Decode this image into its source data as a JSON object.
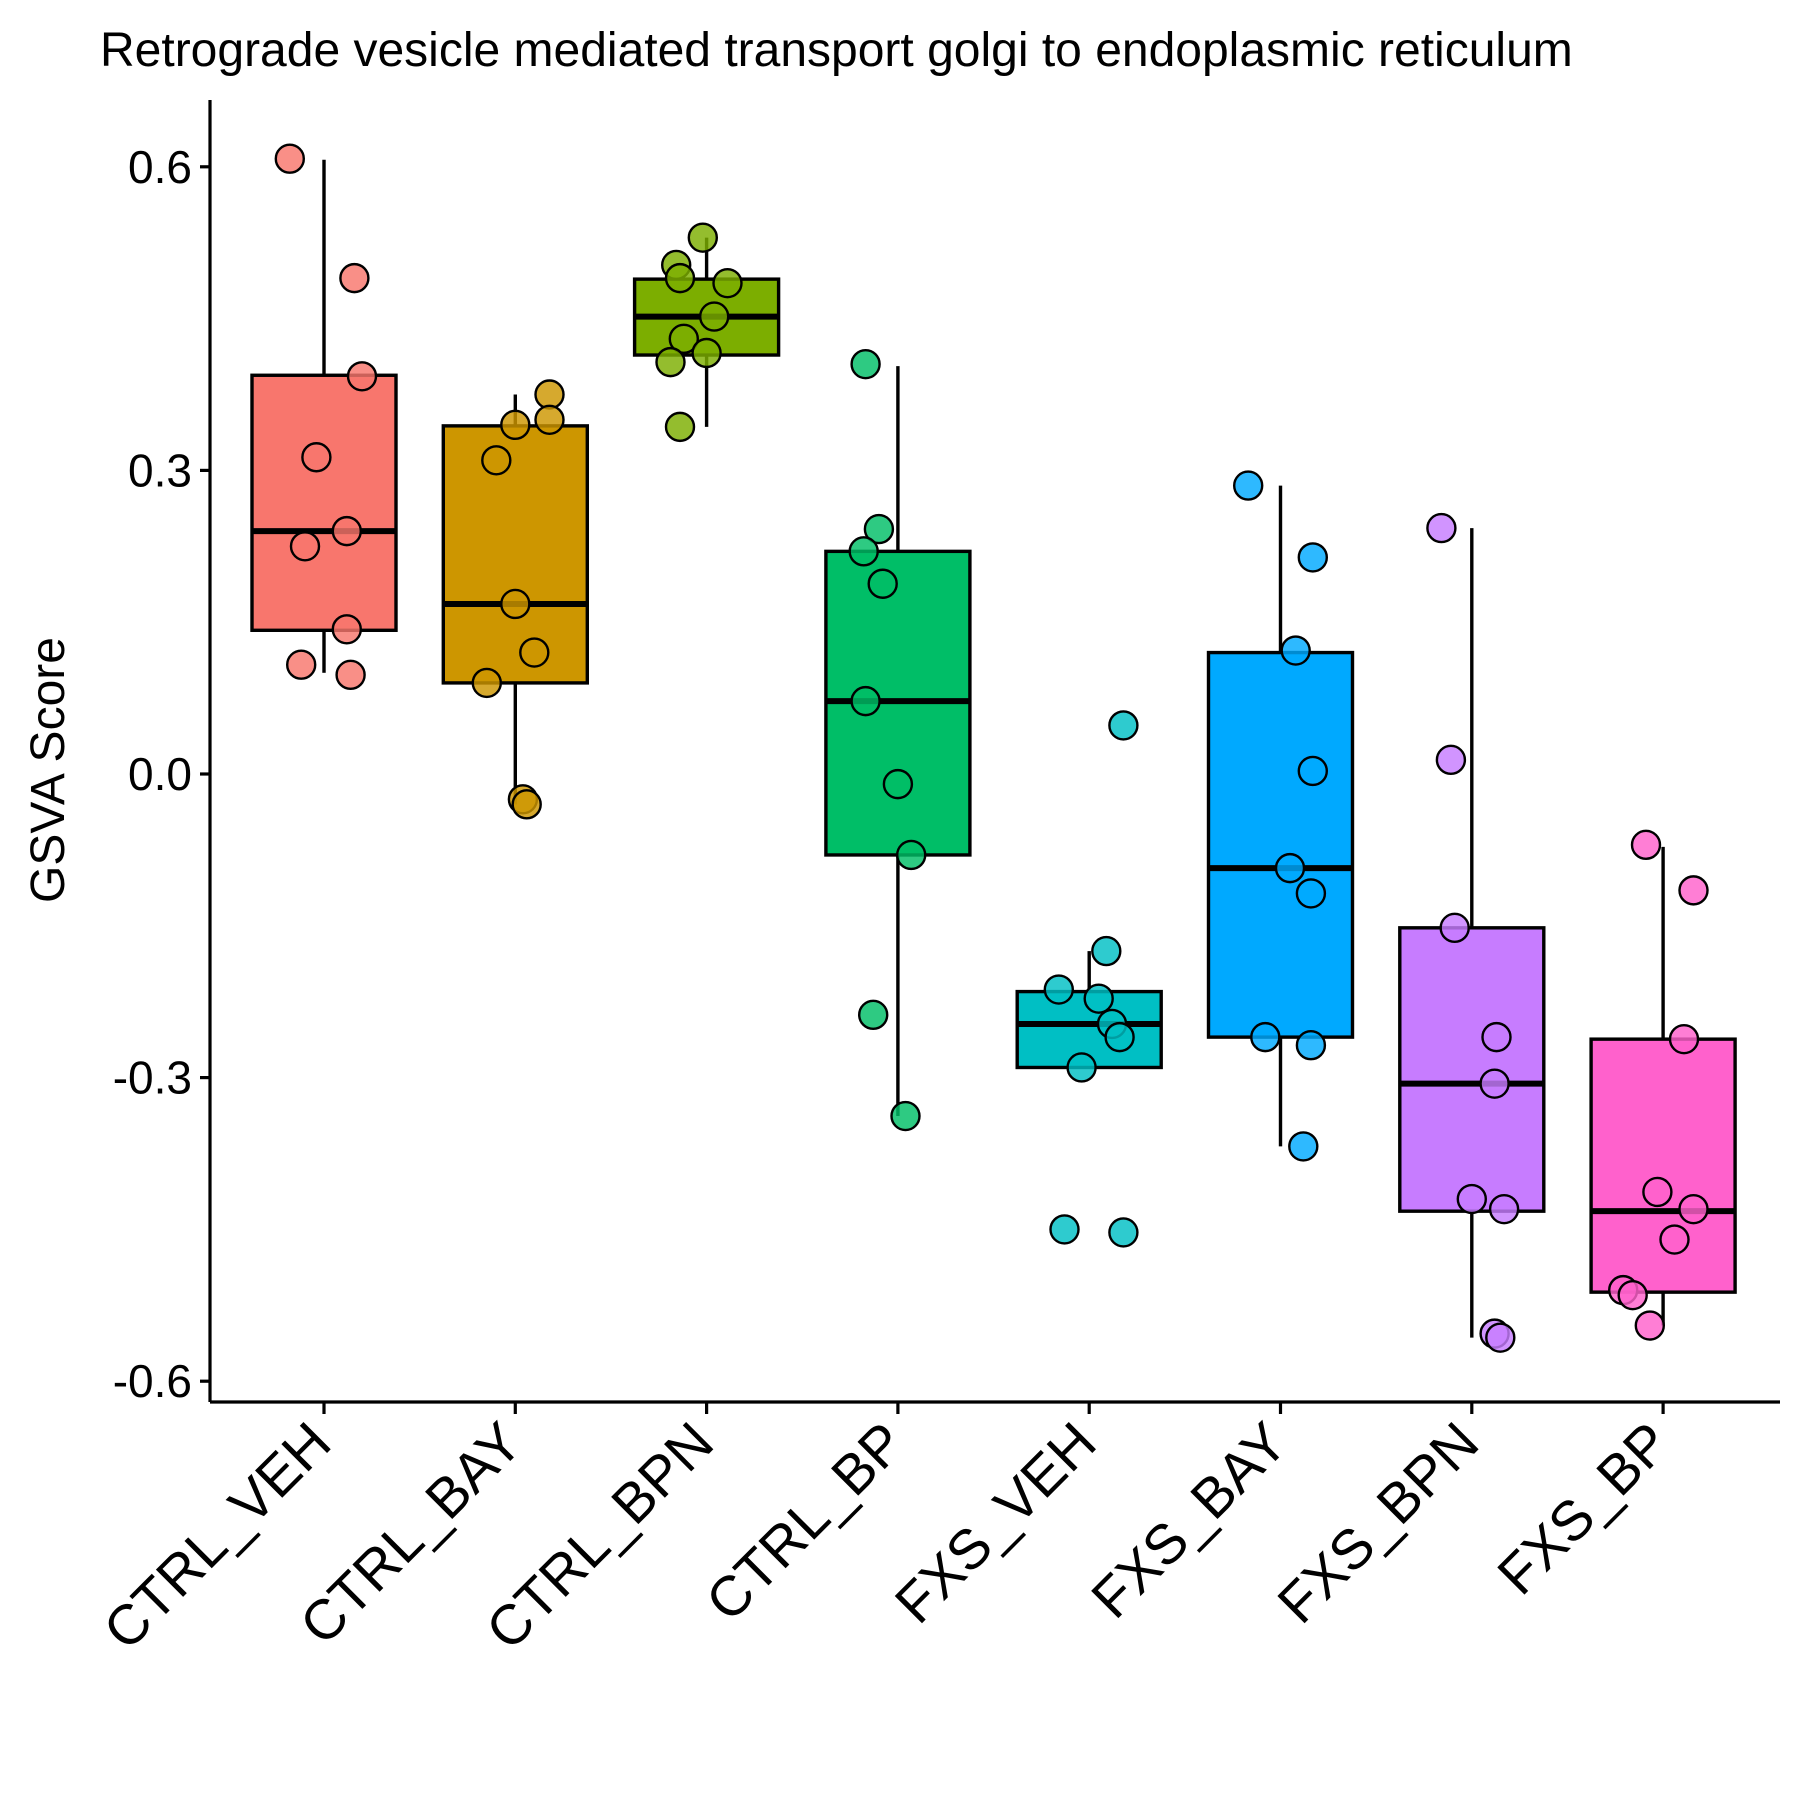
{
  "chart_data": {
    "type": "box",
    "title": "Retrograde vesicle mediated transport golgi to endoplasmic reticulum",
    "xlabel": "",
    "ylabel": "GSVA Score",
    "ylim": [
      -0.62,
      0.645
    ],
    "yticks": [
      0.6,
      0.3,
      0.0,
      -0.3,
      -0.6
    ],
    "ytick_labels": [
      "0.6",
      "0.3",
      "0.0",
      "-0.3",
      "-0.6"
    ],
    "grid": false,
    "legend": "none",
    "categories": [
      "CTRL_VEH",
      "CTRL_BAY",
      "CTRL_BPN",
      "CTRL_BP",
      "FXS_VEH",
      "FXS_BAY",
      "FXS_BPN",
      "FXS_BP"
    ],
    "colors": [
      "#F8766D",
      "#CD9600",
      "#7CAE00",
      "#00BE67",
      "#00BFC4",
      "#00A9FF",
      "#C77CFF",
      "#FF61CC"
    ],
    "boxes": [
      {
        "name": "CTRL_VEH",
        "whisker_low": 0.1,
        "q1": 0.142,
        "median": 0.24,
        "q3": 0.394,
        "whisker_high": 0.607
      },
      {
        "name": "CTRL_BAY",
        "whisker_low": -0.03,
        "q1": 0.09,
        "median": 0.168,
        "q3": 0.344,
        "whisker_high": 0.375
      },
      {
        "name": "CTRL_BPN",
        "whisker_low": 0.343,
        "q1": 0.414,
        "median": 0.452,
        "q3": 0.489,
        "whisker_high": 0.53
      },
      {
        "name": "CTRL_BP",
        "whisker_low": -0.338,
        "q1": -0.08,
        "median": 0.072,
        "q3": 0.22,
        "whisker_high": 0.403
      },
      {
        "name": "FXS_VEH",
        "whisker_low": -0.29,
        "q1": -0.29,
        "median": -0.247,
        "q3": -0.215,
        "whisker_high": -0.175
      },
      {
        "name": "FXS_BAY",
        "whisker_low": -0.368,
        "q1": -0.26,
        "median": -0.093,
        "q3": 0.12,
        "whisker_high": 0.285
      },
      {
        "name": "FXS_BPN",
        "whisker_low": -0.557,
        "q1": -0.432,
        "median": -0.306,
        "q3": -0.152,
        "whisker_high": 0.243
      },
      {
        "name": "FXS_BP",
        "whisker_low": -0.545,
        "q1": -0.512,
        "median": -0.432,
        "q3": -0.262,
        "whisker_high": -0.072
      }
    ],
    "points": [
      {
        "group": "CTRL_VEH",
        "jitter": -0.18,
        "y": 0.608
      },
      {
        "group": "CTRL_VEH",
        "jitter": 0.16,
        "y": 0.49
      },
      {
        "group": "CTRL_VEH",
        "jitter": 0.2,
        "y": 0.393
      },
      {
        "group": "CTRL_VEH",
        "jitter": -0.04,
        "y": 0.313
      },
      {
        "group": "CTRL_VEH",
        "jitter": 0.12,
        "y": 0.24
      },
      {
        "group": "CTRL_VEH",
        "jitter": -0.1,
        "y": 0.225
      },
      {
        "group": "CTRL_VEH",
        "jitter": 0.12,
        "y": 0.143
      },
      {
        "group": "CTRL_VEH",
        "jitter": -0.12,
        "y": 0.108
      },
      {
        "group": "CTRL_VEH",
        "jitter": 0.14,
        "y": 0.098
      },
      {
        "group": "CTRL_BAY",
        "jitter": 0.18,
        "y": 0.375
      },
      {
        "group": "CTRL_BAY",
        "jitter": 0.18,
        "y": 0.35
      },
      {
        "group": "CTRL_BAY",
        "jitter": 0.0,
        "y": 0.345
      },
      {
        "group": "CTRL_BAY",
        "jitter": -0.1,
        "y": 0.31
      },
      {
        "group": "CTRL_BAY",
        "jitter": 0.0,
        "y": 0.168
      },
      {
        "group": "CTRL_BAY",
        "jitter": 0.1,
        "y": 0.12
      },
      {
        "group": "CTRL_BAY",
        "jitter": -0.15,
        "y": 0.09
      },
      {
        "group": "CTRL_BAY",
        "jitter": 0.04,
        "y": -0.025
      },
      {
        "group": "CTRL_BAY",
        "jitter": 0.06,
        "y": -0.03
      },
      {
        "group": "CTRL_BPN",
        "jitter": -0.02,
        "y": 0.53
      },
      {
        "group": "CTRL_BPN",
        "jitter": -0.16,
        "y": 0.503
      },
      {
        "group": "CTRL_BPN",
        "jitter": -0.14,
        "y": 0.49
      },
      {
        "group": "CTRL_BPN",
        "jitter": 0.11,
        "y": 0.485
      },
      {
        "group": "CTRL_BPN",
        "jitter": 0.04,
        "y": 0.452
      },
      {
        "group": "CTRL_BPN",
        "jitter": -0.12,
        "y": 0.43
      },
      {
        "group": "CTRL_BPN",
        "jitter": 0.0,
        "y": 0.416
      },
      {
        "group": "CTRL_BPN",
        "jitter": -0.19,
        "y": 0.407
      },
      {
        "group": "CTRL_BPN",
        "jitter": -0.14,
        "y": 0.343
      },
      {
        "group": "CTRL_BP",
        "jitter": -0.17,
        "y": 0.405
      },
      {
        "group": "CTRL_BP",
        "jitter": -0.1,
        "y": 0.242
      },
      {
        "group": "CTRL_BP",
        "jitter": -0.18,
        "y": 0.22
      },
      {
        "group": "CTRL_BP",
        "jitter": -0.08,
        "y": 0.188
      },
      {
        "group": "CTRL_BP",
        "jitter": -0.17,
        "y": 0.072
      },
      {
        "group": "CTRL_BP",
        "jitter": 0.0,
        "y": -0.01
      },
      {
        "group": "CTRL_BP",
        "jitter": 0.07,
        "y": -0.08
      },
      {
        "group": "CTRL_BP",
        "jitter": -0.13,
        "y": -0.238
      },
      {
        "group": "CTRL_BP",
        "jitter": 0.04,
        "y": -0.338
      },
      {
        "group": "FXS_VEH",
        "jitter": 0.18,
        "y": 0.048
      },
      {
        "group": "FXS_VEH",
        "jitter": 0.09,
        "y": -0.175
      },
      {
        "group": "FXS_VEH",
        "jitter": -0.16,
        "y": -0.213
      },
      {
        "group": "FXS_VEH",
        "jitter": 0.05,
        "y": -0.222
      },
      {
        "group": "FXS_VEH",
        "jitter": 0.12,
        "y": -0.247
      },
      {
        "group": "FXS_VEH",
        "jitter": 0.16,
        "y": -0.26
      },
      {
        "group": "FXS_VEH",
        "jitter": -0.04,
        "y": -0.29
      },
      {
        "group": "FXS_VEH",
        "jitter": -0.13,
        "y": -0.45
      },
      {
        "group": "FXS_VEH",
        "jitter": 0.18,
        "y": -0.453
      },
      {
        "group": "FXS_BAY",
        "jitter": -0.17,
        "y": 0.285
      },
      {
        "group": "FXS_BAY",
        "jitter": 0.17,
        "y": 0.214
      },
      {
        "group": "FXS_BAY",
        "jitter": 0.08,
        "y": 0.122
      },
      {
        "group": "FXS_BAY",
        "jitter": 0.17,
        "y": 0.003
      },
      {
        "group": "FXS_BAY",
        "jitter": 0.05,
        "y": -0.093
      },
      {
        "group": "FXS_BAY",
        "jitter": 0.16,
        "y": -0.118
      },
      {
        "group": "FXS_BAY",
        "jitter": -0.08,
        "y": -0.26
      },
      {
        "group": "FXS_BAY",
        "jitter": 0.16,
        "y": -0.268
      },
      {
        "group": "FXS_BAY",
        "jitter": 0.12,
        "y": -0.368
      },
      {
        "group": "FXS_BPN",
        "jitter": -0.16,
        "y": 0.243
      },
      {
        "group": "FXS_BPN",
        "jitter": -0.11,
        "y": 0.014
      },
      {
        "group": "FXS_BPN",
        "jitter": -0.09,
        "y": -0.152
      },
      {
        "group": "FXS_BPN",
        "jitter": 0.13,
        "y": -0.26
      },
      {
        "group": "FXS_BPN",
        "jitter": 0.12,
        "y": -0.306
      },
      {
        "group": "FXS_BPN",
        "jitter": 0.0,
        "y": -0.42
      },
      {
        "group": "FXS_BPN",
        "jitter": 0.17,
        "y": -0.43
      },
      {
        "group": "FXS_BPN",
        "jitter": 0.12,
        "y": -0.553
      },
      {
        "group": "FXS_BPN",
        "jitter": 0.15,
        "y": -0.557
      },
      {
        "group": "FXS_BP",
        "jitter": -0.09,
        "y": -0.07
      },
      {
        "group": "FXS_BP",
        "jitter": 0.16,
        "y": -0.115
      },
      {
        "group": "FXS_BP",
        "jitter": 0.11,
        "y": -0.262
      },
      {
        "group": "FXS_BP",
        "jitter": -0.03,
        "y": -0.413
      },
      {
        "group": "FXS_BP",
        "jitter": 0.16,
        "y": -0.43
      },
      {
        "group": "FXS_BP",
        "jitter": 0.06,
        "y": -0.46
      },
      {
        "group": "FXS_BP",
        "jitter": -0.21,
        "y": -0.51
      },
      {
        "group": "FXS_BP",
        "jitter": -0.16,
        "y": -0.515
      },
      {
        "group": "FXS_BP",
        "jitter": -0.07,
        "y": -0.545
      }
    ]
  }
}
